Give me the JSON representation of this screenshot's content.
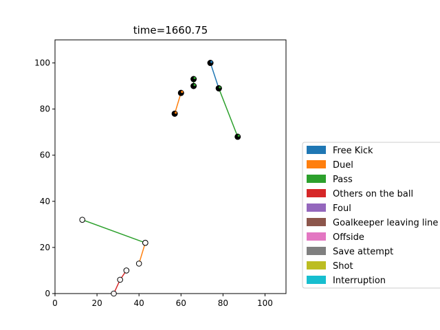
{
  "chart_data": {
    "type": "scatter",
    "title": "time=1660.75",
    "xlabel": "",
    "ylabel": "",
    "xlim": [
      0,
      110
    ],
    "ylim": [
      0,
      110
    ],
    "xticks": [
      0,
      20,
      40,
      60,
      80,
      100
    ],
    "yticks": [
      0,
      20,
      40,
      60,
      80,
      100
    ],
    "grid": false,
    "legend_placement": "right",
    "legend": [
      {
        "label": "Free Kick",
        "color": "#1f77b4"
      },
      {
        "label": "Duel",
        "color": "#ff7f0e"
      },
      {
        "label": "Pass",
        "color": "#2ca02c"
      },
      {
        "label": "Others on the ball",
        "color": "#d62728"
      },
      {
        "label": "Foul",
        "color": "#9467bd"
      },
      {
        "label": "Goalkeeper leaving line",
        "color": "#8c564b"
      },
      {
        "label": "Offside",
        "color": "#e377c2"
      },
      {
        "label": "Save attempt",
        "color": "#7f7f7f"
      },
      {
        "label": "Shot",
        "color": "#bcbd22"
      },
      {
        "label": "Interruption",
        "color": "#17becf"
      }
    ],
    "series": [
      {
        "team": "filled",
        "marker": "filled",
        "event": "Free Kick",
        "color": "#1f77b4",
        "x": [
          74,
          78
        ],
        "y": [
          100,
          89
        ]
      },
      {
        "team": "filled",
        "marker": "filled",
        "event": "Pass",
        "color": "#2ca02c",
        "x": [
          78,
          87
        ],
        "y": [
          89,
          68
        ]
      },
      {
        "team": "filled",
        "marker": "filled",
        "event": "Duel",
        "color": "#ff7f0e",
        "x": [
          57,
          60
        ],
        "y": [
          78,
          87
        ]
      },
      {
        "team": "filled",
        "marker": "filled",
        "event": "Pass",
        "color": "#2ca02c",
        "x": [
          66,
          66
        ],
        "y": [
          93,
          90
        ]
      },
      {
        "team": "hollow",
        "marker": "hollow",
        "event": "Pass",
        "color": "#2ca02c",
        "x": [
          13,
          43
        ],
        "y": [
          32,
          22
        ]
      },
      {
        "team": "hollow",
        "marker": "hollow",
        "event": "Duel",
        "color": "#ff7f0e",
        "x": [
          40,
          43
        ],
        "y": [
          13,
          22
        ]
      },
      {
        "team": "hollow",
        "marker": "hollow",
        "event": "Others on the ball",
        "color": "#d62728",
        "x": [
          28,
          31,
          34
        ],
        "y": [
          0,
          6,
          10
        ]
      }
    ]
  }
}
